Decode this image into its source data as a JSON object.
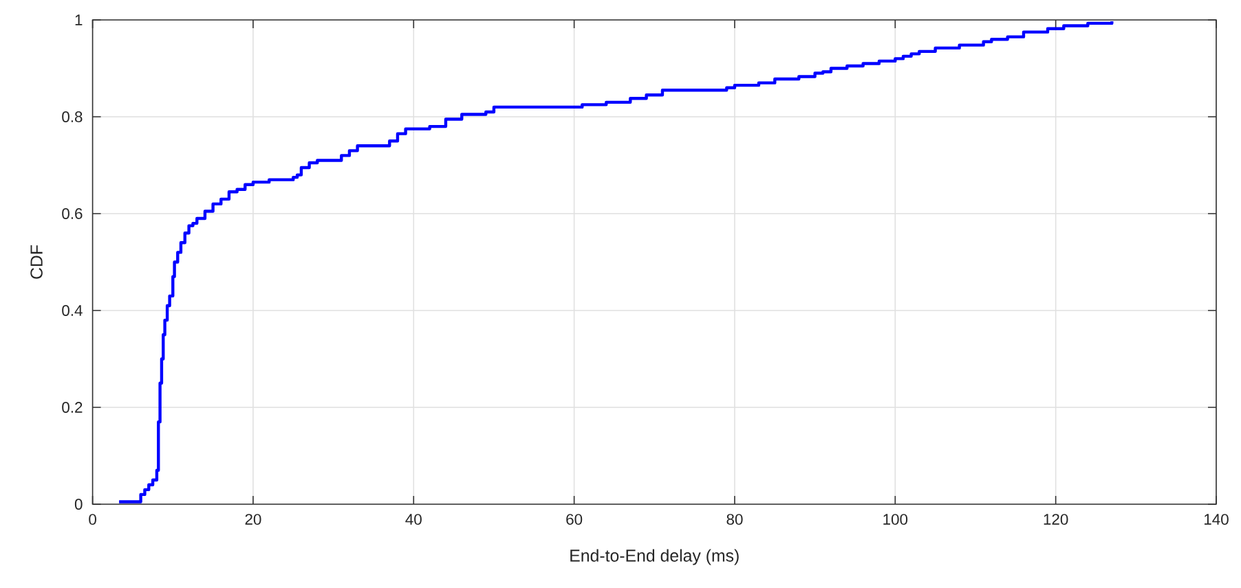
{
  "chart_data": {
    "type": "step",
    "xlabel": "End-to-End delay (ms)",
    "ylabel": "CDF",
    "xlim": [
      0,
      140
    ],
    "ylim": [
      0,
      1
    ],
    "xticks": [
      0,
      20,
      40,
      60,
      80,
      100,
      120,
      140
    ],
    "yticks": [
      0,
      0.2,
      0.4,
      0.6,
      0.8,
      1
    ],
    "grid": true,
    "series": [
      {
        "color": "#0000ff",
        "x": [
          3.3,
          6.0,
          6.5,
          7,
          7.5,
          8,
          8.2,
          8.4,
          8.6,
          8.8,
          9,
          9.3,
          9.6,
          10,
          10.2,
          10.6,
          11,
          11.5,
          12,
          12.5,
          13,
          14,
          15,
          16,
          17,
          18,
          19,
          20,
          22,
          25,
          25.5,
          26,
          27,
          28,
          31,
          32,
          33,
          37,
          38,
          39,
          42,
          44,
          46,
          49,
          50,
          61,
          64,
          67,
          69,
          71,
          79,
          80,
          83,
          85,
          88,
          90,
          91,
          92,
          94,
          96,
          98,
          100,
          101,
          102,
          103,
          105,
          108,
          111,
          112,
          114,
          116,
          119,
          121,
          124,
          127
        ],
        "values": [
          0.005,
          0.02,
          0.03,
          0.04,
          0.05,
          0.07,
          0.17,
          0.25,
          0.3,
          0.35,
          0.38,
          0.41,
          0.43,
          0.47,
          0.5,
          0.52,
          0.54,
          0.56,
          0.575,
          0.58,
          0.59,
          0.605,
          0.62,
          0.63,
          0.645,
          0.65,
          0.66,
          0.665,
          0.67,
          0.675,
          0.68,
          0.695,
          0.705,
          0.71,
          0.72,
          0.73,
          0.74,
          0.75,
          0.765,
          0.775,
          0.78,
          0.795,
          0.805,
          0.81,
          0.82,
          0.825,
          0.83,
          0.838,
          0.845,
          0.855,
          0.86,
          0.865,
          0.87,
          0.878,
          0.883,
          0.89,
          0.893,
          0.9,
          0.905,
          0.91,
          0.915,
          0.92,
          0.925,
          0.93,
          0.935,
          0.942,
          0.948,
          0.955,
          0.96,
          0.965,
          0.975,
          0.982,
          0.988,
          0.993,
          0.997
        ]
      }
    ]
  }
}
